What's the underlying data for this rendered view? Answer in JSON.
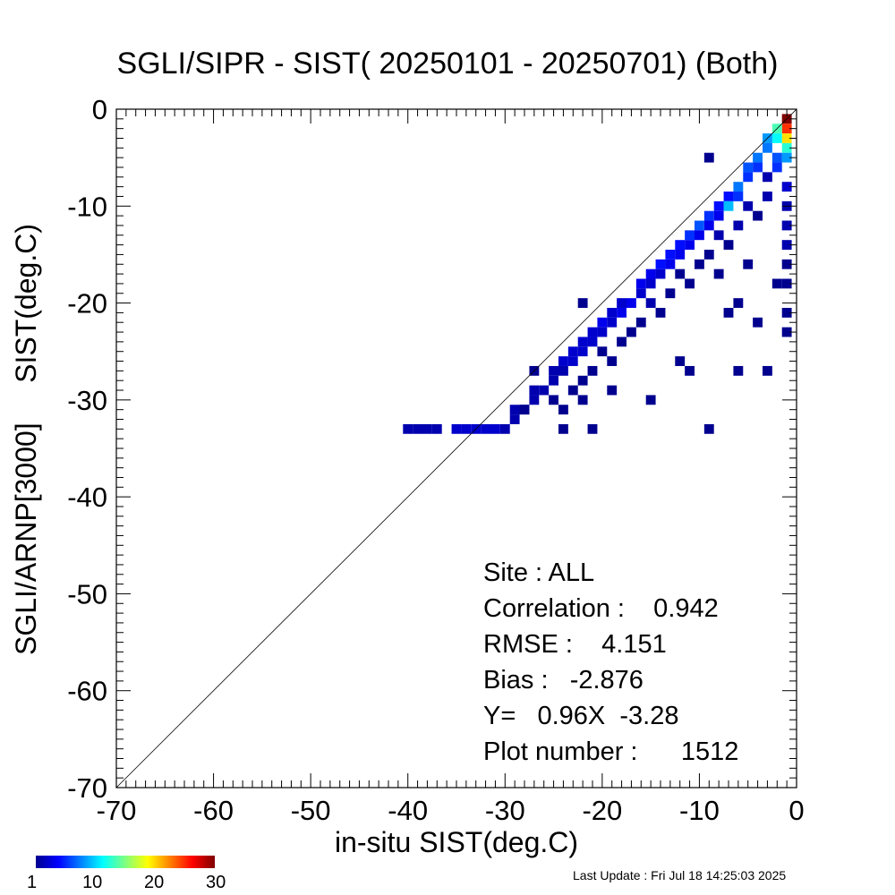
{
  "chart_data": {
    "type": "heatmap",
    "title": "SGLI/SIPR - SIST( 20250101 - 20250701) (Both)",
    "xlabel": "in-situ SIST(deg.C)",
    "ylabel": "SGLI/ARNP[3000]     SIST(deg.C)",
    "xlim": [
      -70,
      0
    ],
    "ylim": [
      -70,
      0
    ],
    "x_ticks": [
      "-70",
      "-60",
      "-50",
      "-40",
      "-30",
      "-20",
      "-10",
      "0"
    ],
    "y_ticks": [
      "-70",
      "-60",
      "-50",
      "-40",
      "-30",
      "-20",
      "-10",
      "0"
    ],
    "bin_size": 1,
    "colorbar": {
      "min": 1,
      "max": 30,
      "tick_labels": [
        "1",
        "10",
        "20",
        "30"
      ]
    },
    "reference_line": "y = x",
    "cells": [
      [
        -1,
        -1,
        30
      ],
      [
        -1,
        -2,
        25
      ],
      [
        -1,
        -3,
        20
      ],
      [
        -2,
        -2,
        14
      ],
      [
        -2,
        -3,
        12
      ],
      [
        -3,
        -3,
        9
      ],
      [
        -3,
        -4,
        8
      ],
      [
        -1,
        -4,
        13
      ],
      [
        -1,
        -5,
        9
      ],
      [
        -2,
        -5,
        7
      ],
      [
        -2,
        -6,
        6
      ],
      [
        -4,
        -5,
        8
      ],
      [
        -4,
        -6,
        6
      ],
      [
        -5,
        -6,
        7
      ],
      [
        -5,
        -7,
        6
      ],
      [
        -6,
        -8,
        8
      ],
      [
        -6,
        -9,
        6
      ],
      [
        -7,
        -9,
        5
      ],
      [
        -7,
        -10,
        10
      ],
      [
        -8,
        -10,
        5
      ],
      [
        -8,
        -11,
        4
      ],
      [
        -9,
        -11,
        6
      ],
      [
        -9,
        -12,
        4
      ],
      [
        -10,
        -12,
        7
      ],
      [
        -10,
        -13,
        4
      ],
      [
        -11,
        -13,
        6
      ],
      [
        -11,
        -14,
        4
      ],
      [
        -12,
        -14,
        5
      ],
      [
        -12,
        -15,
        4
      ],
      [
        -13,
        -15,
        5
      ],
      [
        -13,
        -16,
        4
      ],
      [
        -14,
        -16,
        5
      ],
      [
        -14,
        -17,
        3
      ],
      [
        -15,
        -17,
        4
      ],
      [
        -15,
        -18,
        3
      ],
      [
        -16,
        -18,
        4
      ],
      [
        -16,
        -19,
        3
      ],
      [
        -17,
        -20,
        4
      ],
      [
        -18,
        -20,
        3
      ],
      [
        -18,
        -21,
        4
      ],
      [
        -19,
        -21,
        3
      ],
      [
        -19,
        -22,
        3
      ],
      [
        -20,
        -22,
        4
      ],
      [
        -20,
        -23,
        3
      ],
      [
        -21,
        -23,
        3
      ],
      [
        -21,
        -24,
        3
      ],
      [
        -22,
        -24,
        3
      ],
      [
        -22,
        -25,
        3
      ],
      [
        -23,
        -25,
        3
      ],
      [
        -23,
        -26,
        3
      ],
      [
        -24,
        -26,
        3
      ],
      [
        -24,
        -27,
        2
      ],
      [
        -25,
        -27,
        2
      ],
      [
        -25,
        -28,
        2
      ],
      [
        -26,
        -29,
        2
      ],
      [
        -27,
        -29,
        2
      ],
      [
        -27,
        -30,
        2
      ],
      [
        -28,
        -31,
        2
      ],
      [
        -29,
        -31,
        2
      ],
      [
        -29,
        -32,
        2
      ],
      [
        -30,
        -33,
        2
      ],
      [
        -31,
        -33,
        3
      ],
      [
        -32,
        -33,
        3
      ],
      [
        -33,
        -33,
        3
      ],
      [
        -34,
        -33,
        3
      ],
      [
        -35,
        -33,
        3
      ],
      [
        -38,
        -33,
        2
      ],
      [
        -40,
        -33,
        2
      ],
      [
        -39,
        -33,
        2
      ],
      [
        -37,
        -33,
        2
      ],
      [
        -1,
        -8,
        3
      ],
      [
        -1,
        -10,
        2
      ],
      [
        -1,
        -12,
        2
      ],
      [
        -1,
        -14,
        2
      ],
      [
        -1,
        -16,
        1
      ],
      [
        -1,
        -18,
        1
      ],
      [
        -1,
        -21,
        1
      ],
      [
        -1,
        -23,
        1
      ],
      [
        -3,
        -7,
        2
      ],
      [
        -3,
        -9,
        2
      ],
      [
        -4,
        -11,
        1
      ],
      [
        -5,
        -10,
        2
      ],
      [
        -6,
        -12,
        2
      ],
      [
        -7,
        -14,
        1
      ],
      [
        -8,
        -13,
        2
      ],
      [
        -9,
        -15,
        1
      ],
      [
        -10,
        -16,
        1
      ],
      [
        -11,
        -18,
        1
      ],
      [
        -12,
        -17,
        1
      ],
      [
        -13,
        -19,
        1
      ],
      [
        -14,
        -21,
        1
      ],
      [
        -15,
        -20,
        2
      ],
      [
        -16,
        -22,
        1
      ],
      [
        -17,
        -23,
        1
      ],
      [
        -18,
        -24,
        1
      ],
      [
        -19,
        -26,
        1
      ],
      [
        -20,
        -25,
        1
      ],
      [
        -21,
        -27,
        1
      ],
      [
        -22,
        -28,
        1
      ],
      [
        -23,
        -29,
        1
      ],
      [
        -25,
        -30,
        1
      ],
      [
        -24,
        -31,
        1
      ],
      [
        -3,
        -27,
        1
      ],
      [
        -6,
        -27,
        1
      ],
      [
        -9,
        -33,
        1
      ],
      [
        -11,
        -27,
        1
      ],
      [
        -12,
        -26,
        1
      ],
      [
        -8,
        -17,
        1
      ],
      [
        -5,
        -16,
        1
      ],
      [
        -6,
        -20,
        1
      ],
      [
        -7,
        -21,
        1
      ],
      [
        -4,
        -22,
        1
      ],
      [
        -2,
        -18,
        1
      ],
      [
        -9,
        -5,
        1
      ],
      [
        -15,
        -30,
        1
      ],
      [
        -19,
        -29,
        1
      ],
      [
        -21,
        -33,
        1
      ],
      [
        -24,
        -33,
        1
      ],
      [
        -27,
        -27,
        1
      ],
      [
        -28,
        -31,
        1
      ],
      [
        -22,
        -20,
        1
      ],
      [
        -22,
        -30,
        1
      ]
    ]
  },
  "stats": {
    "site": "Site : ALL",
    "correlation": "Correlation :    0.942",
    "rmse": "RMSE :    4.151",
    "bias": "Bias :   -2.876",
    "regression": "Y=   0.96X  -3.28",
    "plot_number": "Plot number :      1512"
  },
  "last_update": "Last Update : Fri Jul 18 14:25:03 2025"
}
